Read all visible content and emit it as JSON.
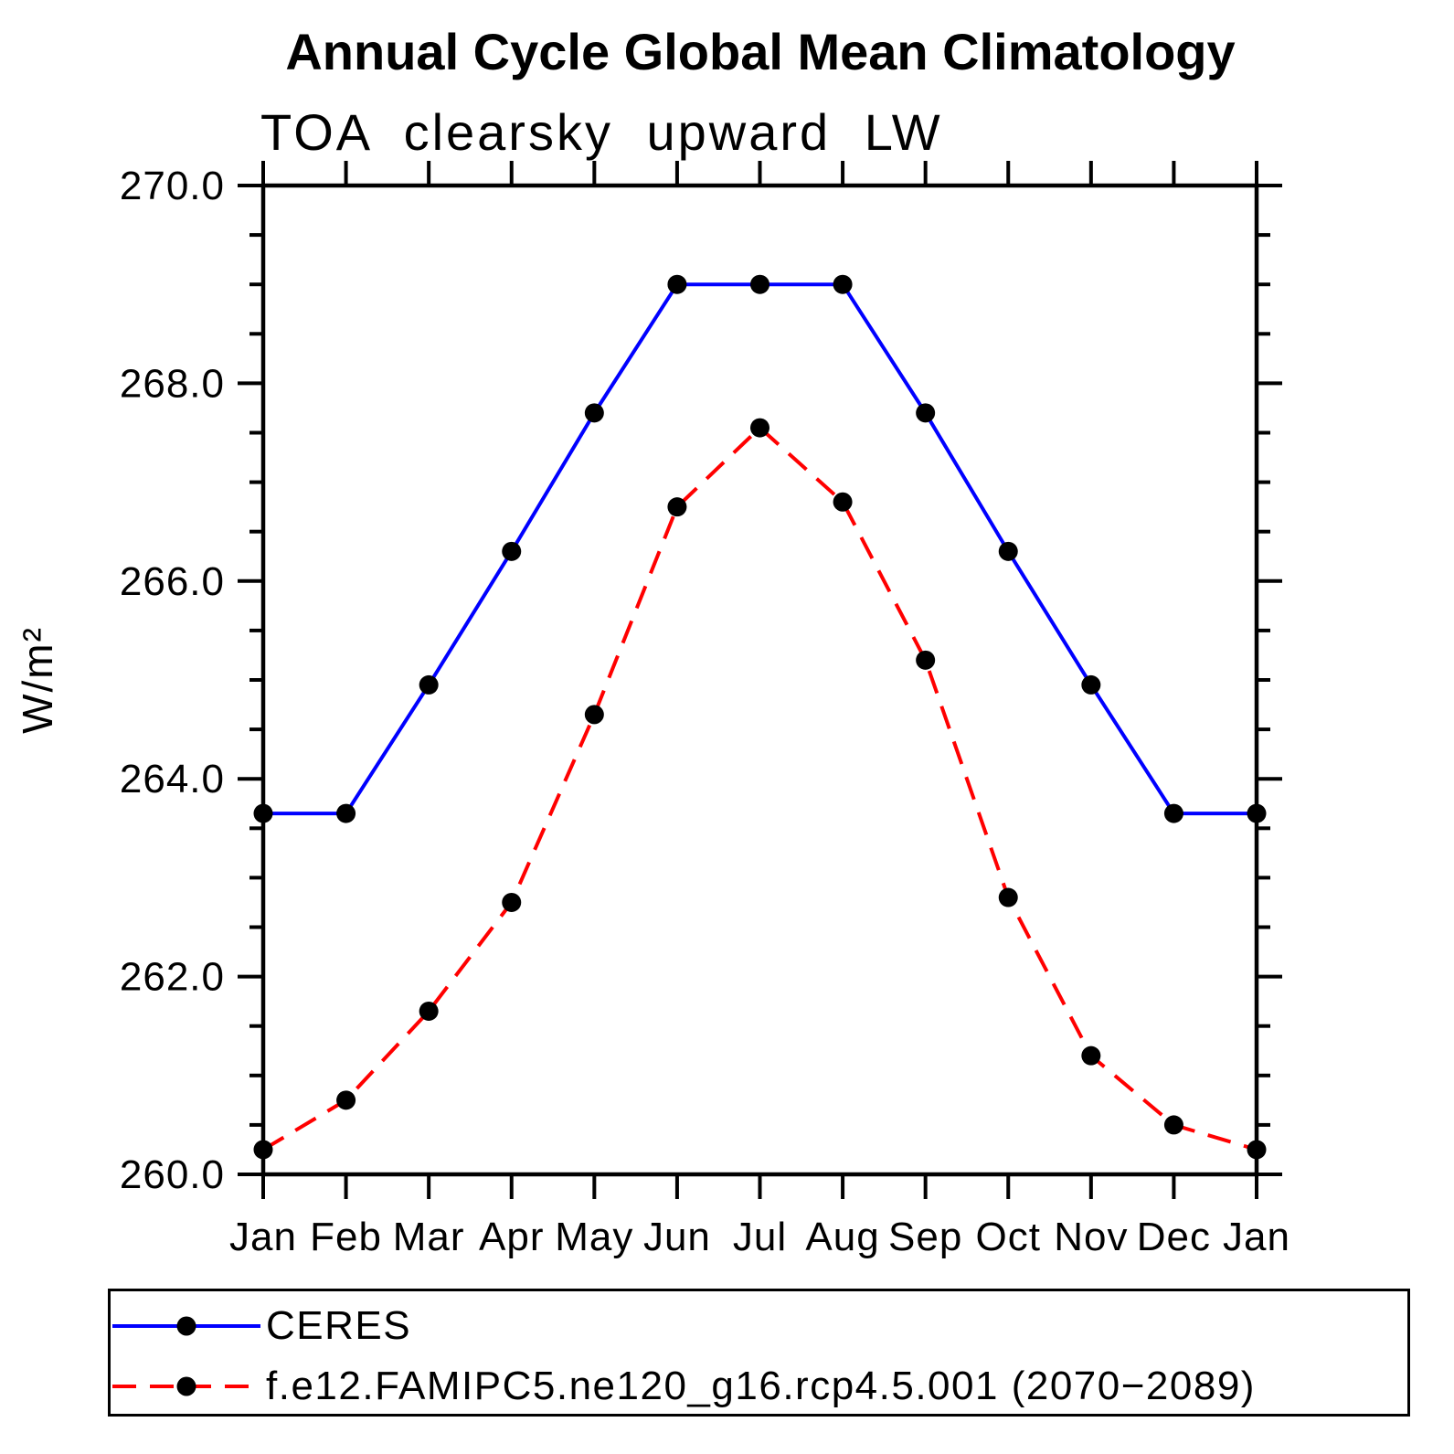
{
  "page": {
    "background_color": "#ffffff",
    "text_color": "#000000"
  },
  "chart_data": {
    "type": "line",
    "title": "Annual Cycle Global Mean Climatology",
    "subtitle": "TOA clearsky upward LW",
    "ylabel": "W/m²",
    "xlabel": "",
    "grid": false,
    "legend_position": "below-left",
    "x_tick_labels": [
      "Jan",
      "Feb",
      "Mar",
      "Apr",
      "May",
      "Jun",
      "Jul",
      "Aug",
      "Sep",
      "Oct",
      "Nov",
      "Dec",
      "Jan"
    ],
    "ylim": [
      260.0,
      270.0
    ],
    "y_minor_step": 0.5,
    "y_ticks": [
      {
        "value": 270.0,
        "label": "270.0"
      },
      {
        "value": 268.0,
        "label": "268.0"
      },
      {
        "value": 266.0,
        "label": "266.0"
      },
      {
        "value": 264.0,
        "label": "264.0"
      },
      {
        "value": 262.0,
        "label": "262.0"
      },
      {
        "value": 260.0,
        "label": "260.0"
      }
    ],
    "series": [
      {
        "name": "CERES",
        "color": "#0000ff",
        "style": "solid",
        "marker": "circle",
        "marker_color": "#000000",
        "values": [
          263.65,
          263.65,
          264.95,
          266.3,
          267.7,
          269.0,
          269.0,
          269.0,
          267.7,
          266.3,
          264.95,
          263.65,
          263.65
        ]
      },
      {
        "name": "f.e12.FAMIPC5.ne120_g16.rcp4.5.001 (2070−2089)",
        "color": "#ff0000",
        "style": "dashed",
        "marker": "circle",
        "marker_color": "#000000",
        "values": [
          260.25,
          260.75,
          261.65,
          262.75,
          264.65,
          266.75,
          267.55,
          266.8,
          265.2,
          262.8,
          261.2,
          260.5,
          260.25
        ]
      }
    ]
  }
}
